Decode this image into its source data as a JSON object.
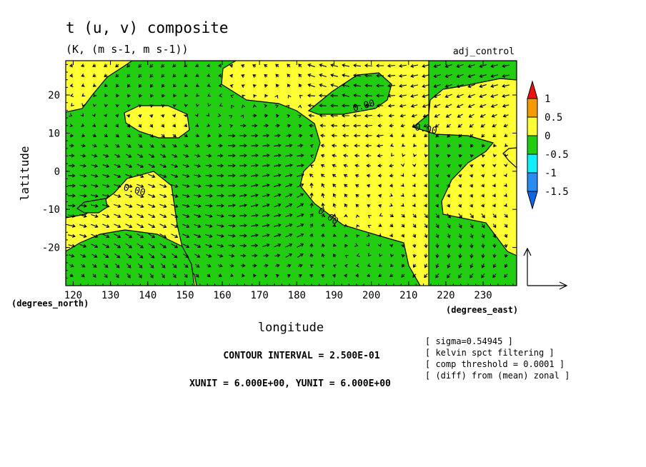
{
  "chart_data": {
    "type": "contour_vector_map",
    "title": "t (u, v) composite",
    "subtitle": "(K, (m s-1, m s-1))",
    "run_label": "adj_control",
    "xlabel": "longitude",
    "ylabel": "latitude",
    "x_unit_label": "(degrees_east)",
    "y_unit_label": "(degrees_north)",
    "xlim": [
      118,
      239
    ],
    "ylim": [
      -30,
      29
    ],
    "x_ticks": [
      120,
      130,
      140,
      150,
      160,
      170,
      180,
      190,
      200,
      210,
      220,
      230
    ],
    "y_ticks": [
      20,
      10,
      0,
      -10,
      -20
    ],
    "contour_interval_text": "CONTOUR INTERVAL = 2.500E-01",
    "vector_units_text": "XUNIT = 6.000E+00, YUNIT = 6.000E+00",
    "contour_labels": [
      "0.00",
      "0.00",
      "0.00",
      "0.00"
    ],
    "colorbar": {
      "labels": [
        "1",
        "0.5",
        "0",
        "-0.5",
        "-1",
        "-1.5"
      ],
      "colors": [
        "#ee1111",
        "#f59a00",
        "#ffff33",
        "#22cc11",
        "#11eeff",
        "#2a8cf0",
        "#1164e6"
      ]
    },
    "field_colors": {
      "positive": "#ffff33",
      "negative": "#22cc11"
    },
    "notes": [
      "[ sigma=0.54945 ]",
      "[ kelvin spct filtering ]",
      "[ comp threshold = 0.0001 ]",
      "[ (diff) from (mean) zonal ]"
    ]
  }
}
